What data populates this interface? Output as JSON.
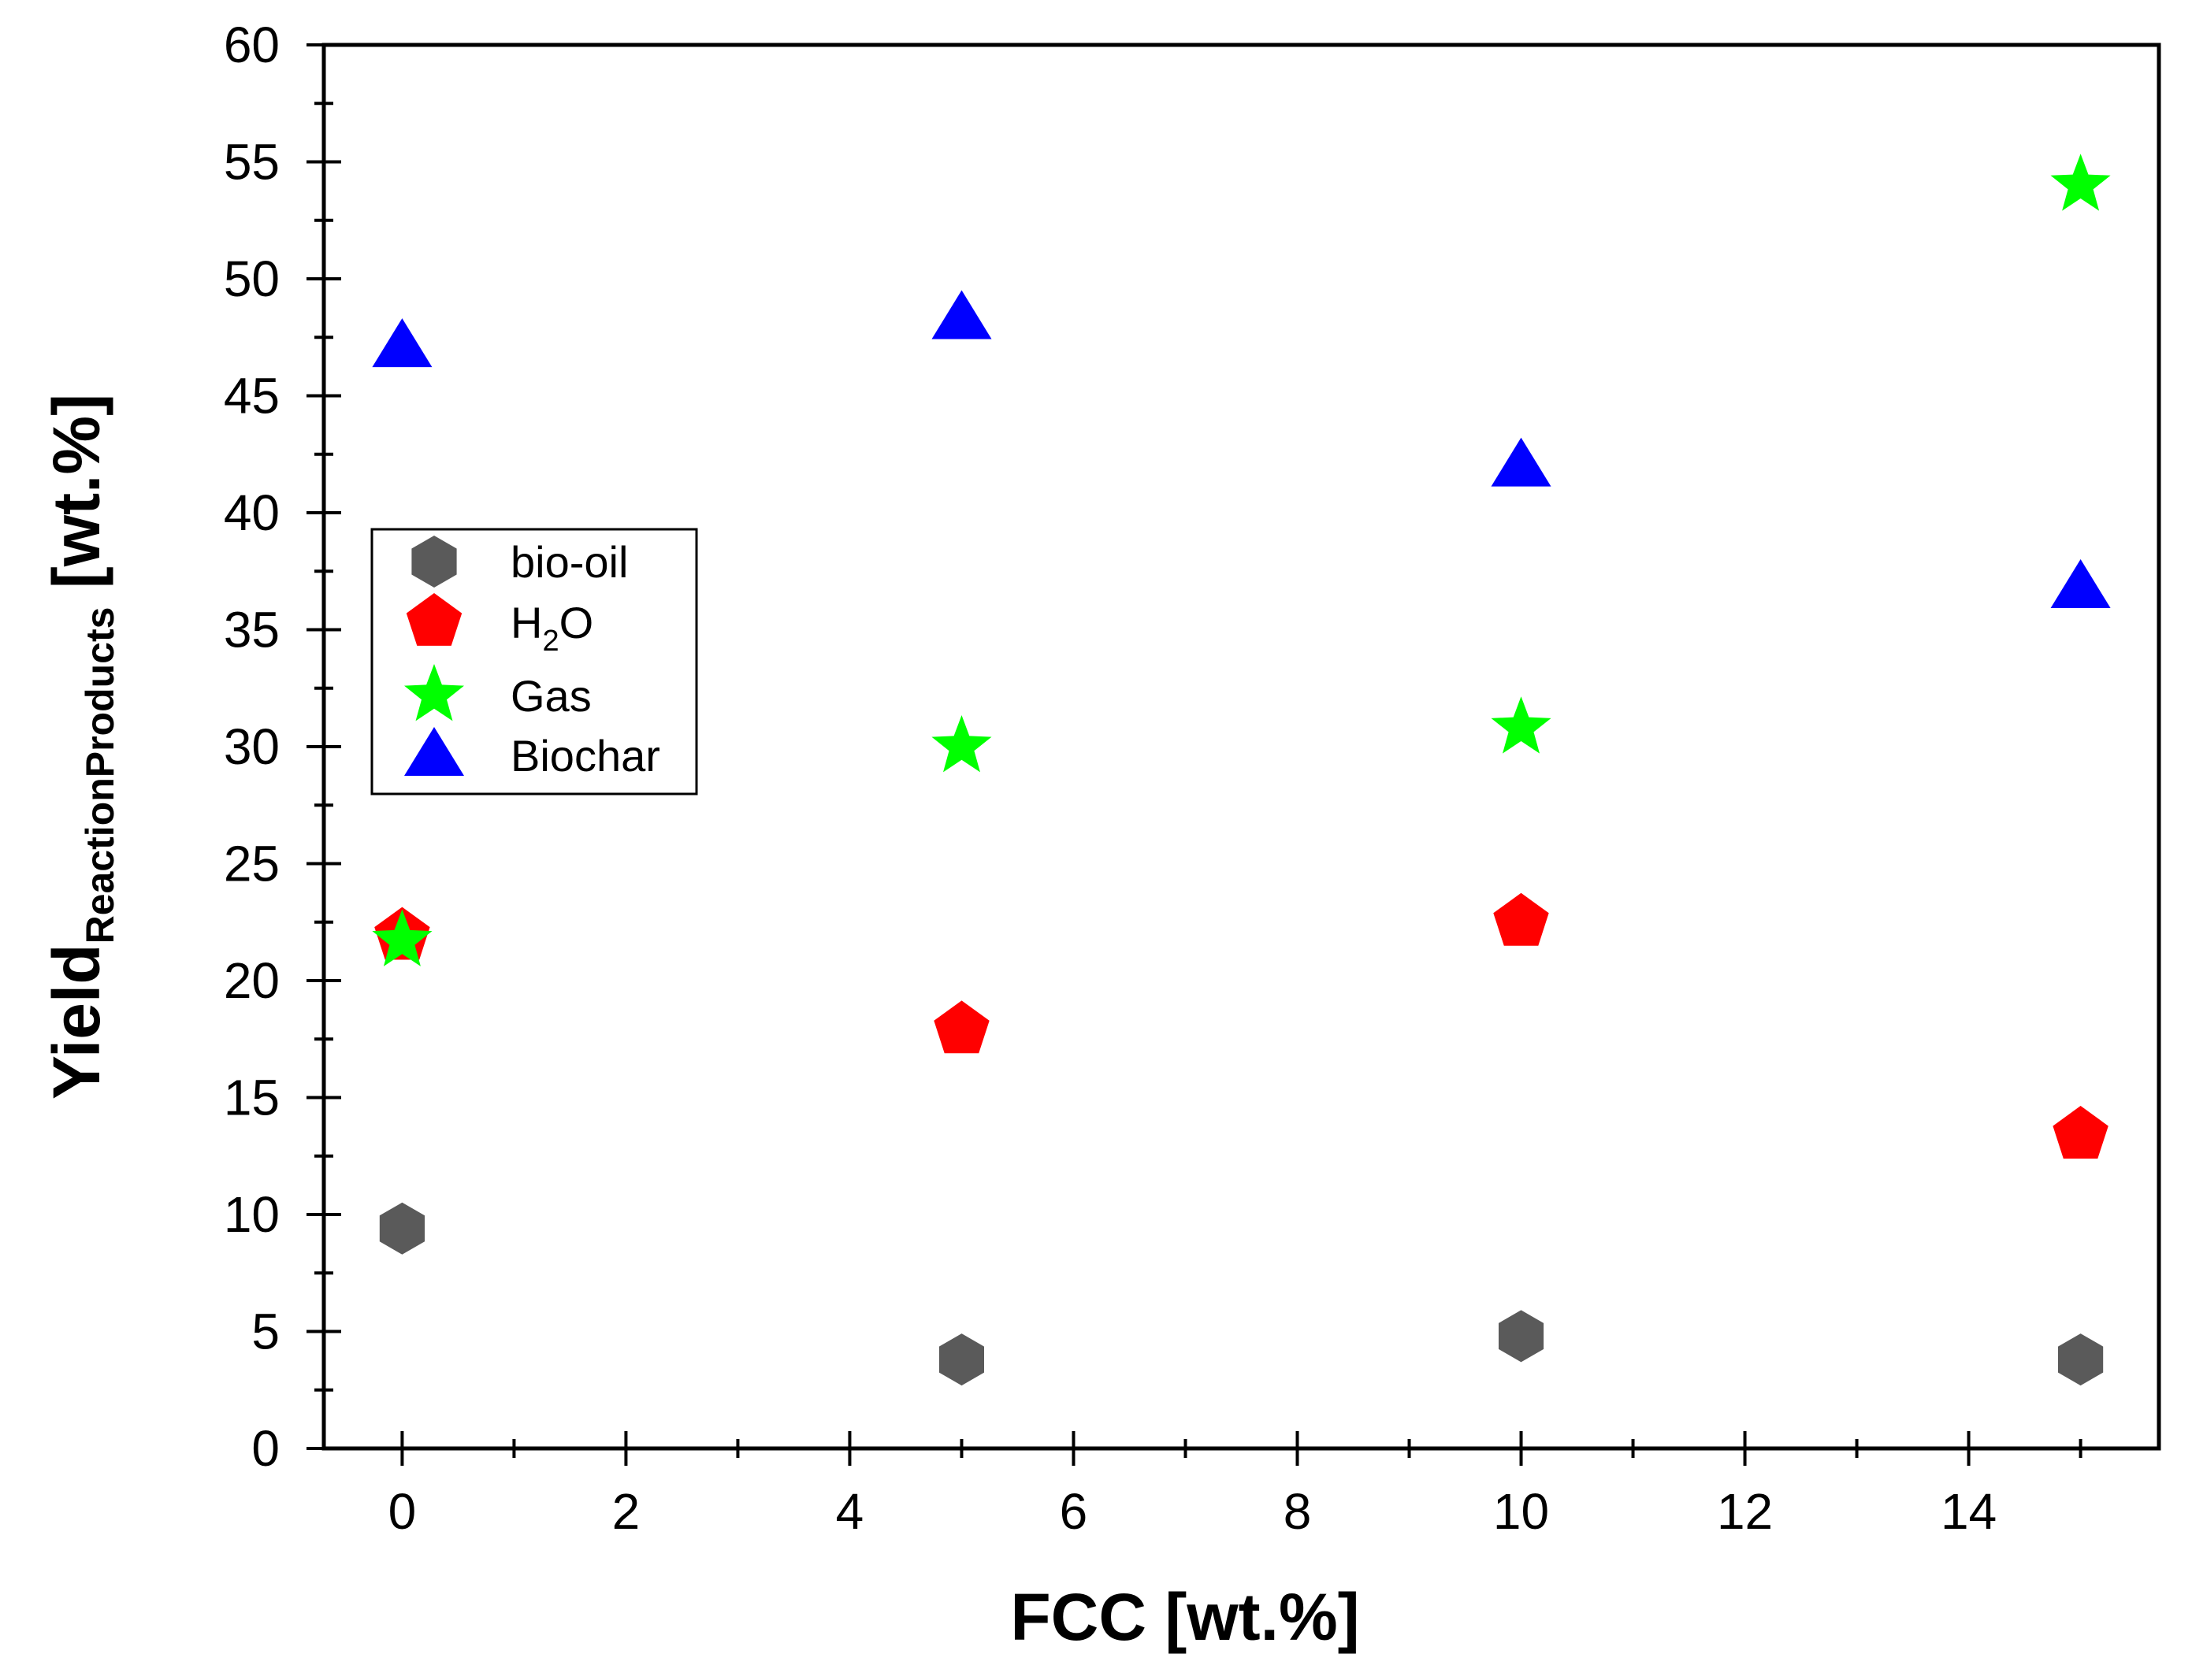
{
  "chart_data": {
    "type": "scatter",
    "xlabel": "FCC [wt.%]",
    "ylabel": {
      "main": "Yield",
      "subscript": "ReactionProducts",
      "unit": " [wt.%]"
    },
    "xlim": [
      -0.7,
      15.7
    ],
    "ylim": [
      0,
      60
    ],
    "xticks": [
      0,
      2,
      4,
      6,
      8,
      10,
      12,
      14
    ],
    "yticks": [
      0,
      5,
      10,
      15,
      20,
      25,
      30,
      35,
      40,
      45,
      50,
      55,
      60
    ],
    "grid": false,
    "legend_position": "center-left",
    "series": [
      {
        "name": "bio-oil",
        "label_main": "bio-oil",
        "label_sub": "",
        "label_tail": "",
        "marker": "hexagon",
        "color": "#5a5a5a",
        "x": [
          0,
          5,
          10,
          15
        ],
        "y": [
          9.4,
          3.8,
          4.8,
          3.8
        ]
      },
      {
        "name": "H2O",
        "label_main": "H",
        "label_sub": "2",
        "label_tail": "O",
        "marker": "pentagon",
        "color": "#ff0000",
        "x": [
          0,
          5,
          10,
          15
        ],
        "y": [
          21.9,
          17.9,
          22.5,
          13.4
        ]
      },
      {
        "name": "Gas",
        "label_main": "Gas",
        "label_sub": "",
        "label_tail": "",
        "marker": "star",
        "color": "#00ff00",
        "x": [
          0,
          5,
          10,
          15
        ],
        "y": [
          21.7,
          30.0,
          30.8,
          54.0
        ]
      },
      {
        "name": "Biochar",
        "label_main": "Biochar",
        "label_sub": "",
        "label_tail": "",
        "marker": "triangle",
        "color": "#0000ff",
        "x": [
          0,
          5,
          10,
          15
        ],
        "y": [
          47.1,
          48.3,
          42.0,
          36.8
        ]
      }
    ]
  }
}
